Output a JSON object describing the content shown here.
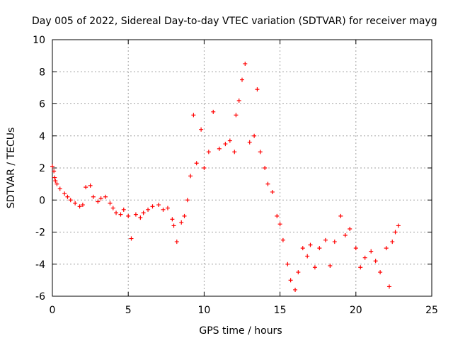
{
  "chart_data": {
    "type": "scatter",
    "title": "Day 005 of 2022, Sidereal Day-to-day VTEC variation (SDTVAR) for receiver mayg",
    "xlabel": "GPS time / hours",
    "ylabel": "SDTVAR / TECUs",
    "xlim": [
      0,
      25
    ],
    "ylim": [
      -6,
      10
    ],
    "xticks": [
      0,
      5,
      10,
      15,
      20,
      25
    ],
    "yticks": [
      -6,
      -4,
      -2,
      0,
      2,
      4,
      6,
      8,
      10
    ],
    "xtick_labels": [
      "0",
      "5",
      "10",
      "15",
      "20",
      "25"
    ],
    "ytick_labels": [
      "-6",
      "-4",
      "-2",
      "0",
      "2",
      "4",
      "6",
      "8",
      "10"
    ],
    "grid": true,
    "marker": "+",
    "series": [
      {
        "name": "SDTVAR",
        "color": "#ff0000",
        "x": [
          0.0,
          0.1,
          0.15,
          0.2,
          0.3,
          0.5,
          0.8,
          1.0,
          1.2,
          1.5,
          1.8,
          2.0,
          2.2,
          2.5,
          2.7,
          3.0,
          3.2,
          3.5,
          3.8,
          4.0,
          4.2,
          4.5,
          4.7,
          5.0,
          5.2,
          5.5,
          5.8,
          6.0,
          6.3,
          6.6,
          7.0,
          7.3,
          7.6,
          7.9,
          8.0,
          8.2,
          8.5,
          8.7,
          8.9,
          9.1,
          9.3,
          9.5,
          9.8,
          10.0,
          10.3,
          10.6,
          11.0,
          11.4,
          11.7,
          12.0,
          12.1,
          12.3,
          12.5,
          12.7,
          13.0,
          13.3,
          13.5,
          13.7,
          14.0,
          14.2,
          14.5,
          14.8,
          15.0,
          15.2,
          15.5,
          15.7,
          16.0,
          16.2,
          16.5,
          16.8,
          17.0,
          17.3,
          17.6,
          18.0,
          18.3,
          18.6,
          19.0,
          19.3,
          19.6,
          20.0,
          20.3,
          20.6,
          21.0,
          21.3,
          21.6,
          22.0,
          22.2,
          22.4,
          22.6,
          22.8
        ],
        "y": [
          2.1,
          1.8,
          1.4,
          1.2,
          1.0,
          0.7,
          0.4,
          0.2,
          0.0,
          -0.2,
          -0.4,
          -0.3,
          0.8,
          0.9,
          0.2,
          -0.1,
          0.1,
          0.2,
          -0.2,
          -0.5,
          -0.8,
          -0.9,
          -0.6,
          -1.0,
          -2.4,
          -0.9,
          -1.1,
          -0.8,
          -0.6,
          -0.4,
          -0.3,
          -0.6,
          -0.5,
          -1.2,
          -1.6,
          -2.6,
          -1.4,
          -1.0,
          0.0,
          1.5,
          5.3,
          2.3,
          4.4,
          2.0,
          3.0,
          5.5,
          3.2,
          3.5,
          3.7,
          3.0,
          5.3,
          6.2,
          7.5,
          8.5,
          3.6,
          4.0,
          6.9,
          3.0,
          2.0,
          1.0,
          0.5,
          -1.0,
          -1.5,
          -2.5,
          -4.0,
          -5.0,
          -5.6,
          -4.5,
          -3.0,
          -3.5,
          -2.8,
          -4.2,
          -3.0,
          -2.5,
          -4.1,
          -2.6,
          -1.0,
          -2.2,
          -1.8,
          -3.0,
          -4.2,
          -3.6,
          -3.2,
          -3.8,
          -4.5,
          -3.0,
          -5.4,
          -2.6,
          -2.0,
          -1.6
        ]
      }
    ]
  }
}
